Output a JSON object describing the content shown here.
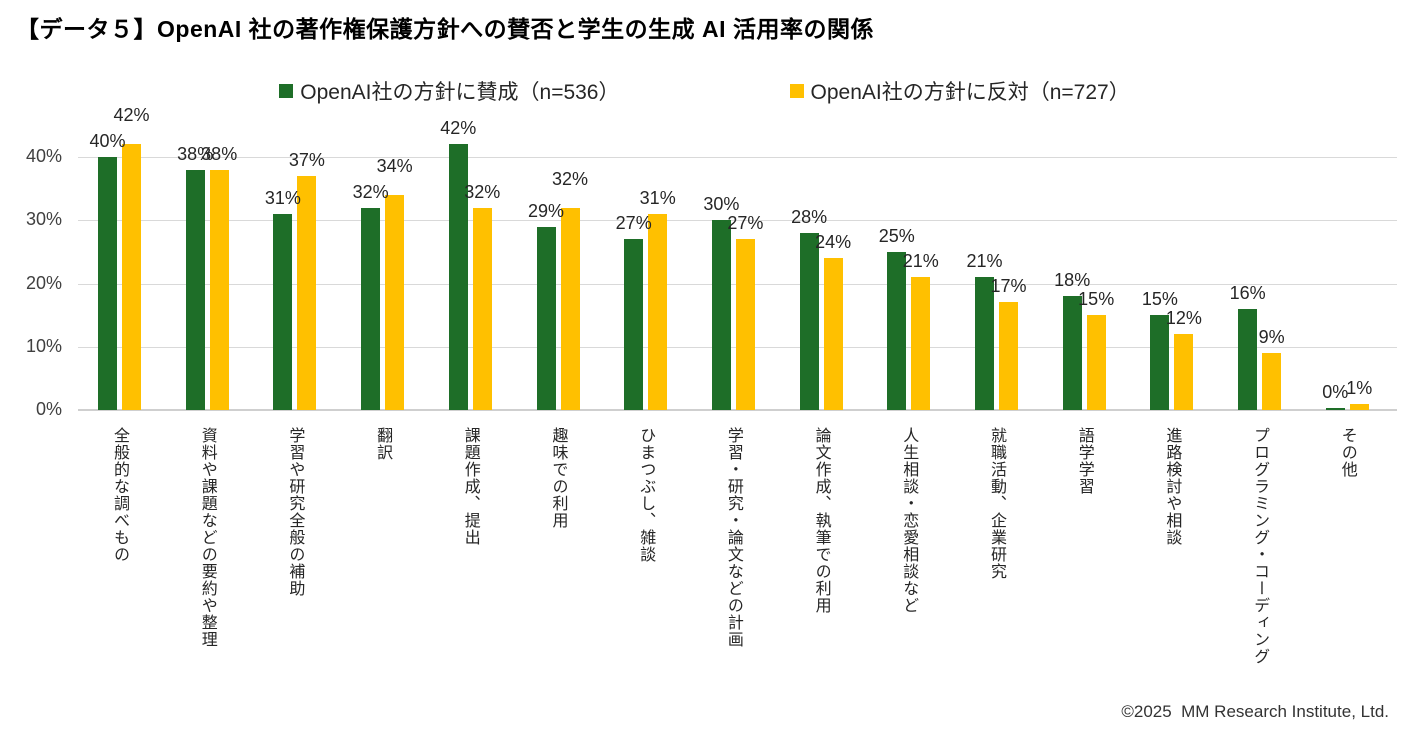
{
  "title": "【データ５】OpenAI 社の著作権保護方針への賛否と学生の生成 AI 活用率の関係",
  "footer": "©2025  MM Research Institute, Ltd.",
  "colors": {
    "agree_green": "#1E6E28",
    "oppose_yellow": "#FFC000",
    "gridline": "#D9D9D9",
    "axis_line": "#CFCFCF",
    "value_label_text": "#262626",
    "axis_tick_text": "#404040"
  },
  "chart_data": {
    "type": "bar",
    "title": "【データ５】OpenAI 社の著作権保護方針への賛否と学生の生成 AI 活用率の関係",
    "categories": [
      "全般的な調べもの",
      "資料や課題などの要約や整理",
      "学習や研究全般の補助",
      "翻訳",
      "課題作成、提出",
      "趣味での利用",
      "ひまつぶし、雑談",
      "学習・研究・論文などの計画",
      "論文作成、執筆での利用",
      "人生相談・恋愛相談など",
      "就職活動、企業研究",
      "語学学習",
      "進路検討や相談",
      "プログラミング・コーディング",
      "その他"
    ],
    "series": [
      {
        "name": "OpenAI社の方針に賛成（n=536）",
        "color": "#1E6E28",
        "values": [
          40,
          38,
          31,
          32,
          42,
          29,
          27,
          30,
          28,
          25,
          21,
          18,
          15,
          16,
          0
        ]
      },
      {
        "name": "OpenAI社の方針に反対（n=727）",
        "color": "#FFC000",
        "values": [
          42,
          38,
          37,
          34,
          32,
          32,
          31,
          27,
          24,
          21,
          17,
          15,
          12,
          9,
          1
        ]
      }
    ],
    "value_label_format": "{v}%",
    "xlabel": "",
    "ylabel": "",
    "ylim": [
      0,
      45
    ],
    "ytick_values": [
      0,
      10,
      20,
      30,
      40
    ],
    "ytick_labels": [
      "0%",
      "10%",
      "20%",
      "30%",
      "40%"
    ],
    "grid": true,
    "legend_position": "top"
  }
}
